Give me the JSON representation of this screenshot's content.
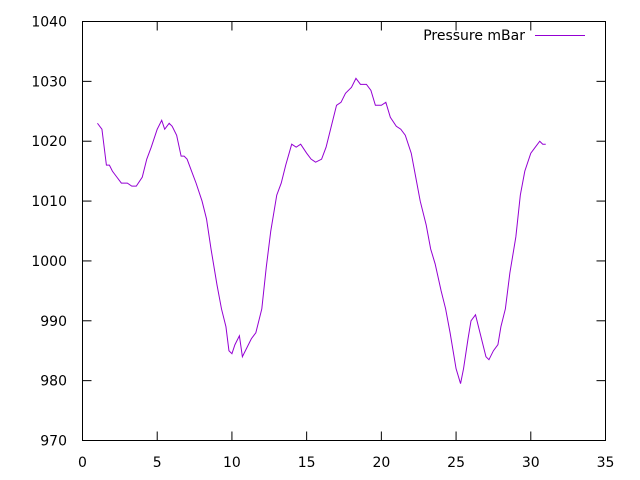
{
  "chart_data": {
    "type": "line",
    "title": "",
    "xlabel": "",
    "ylabel": "",
    "xlim": [
      0,
      35
    ],
    "ylim": [
      970,
      1040
    ],
    "x_ticks": [
      0,
      5,
      10,
      15,
      20,
      25,
      30,
      35
    ],
    "y_ticks": [
      970,
      980,
      990,
      1000,
      1010,
      1020,
      1030,
      1040
    ],
    "x_tick_labels": [
      "0",
      "5",
      "10",
      "15",
      "20",
      "25",
      "30",
      "35"
    ],
    "y_tick_labels": [
      "970",
      "980",
      "990",
      "1000",
      "1010",
      "1020",
      "1030",
      "1040"
    ],
    "grid": false,
    "legend": {
      "position": "top-right"
    },
    "series": [
      {
        "name": "Pressure mBar",
        "color": "#9400d3",
        "x": [
          1.0,
          1.3,
          1.6,
          1.8,
          2.0,
          2.3,
          2.6,
          3.0,
          3.3,
          3.6,
          4.0,
          4.3,
          4.6,
          5.0,
          5.3,
          5.5,
          5.8,
          6.0,
          6.3,
          6.6,
          6.8,
          7.0,
          7.3,
          7.6,
          8.0,
          8.3,
          8.6,
          9.0,
          9.3,
          9.6,
          9.8,
          10.0,
          10.2,
          10.5,
          10.7,
          11.0,
          11.3,
          11.6,
          12.0,
          12.3,
          12.6,
          13.0,
          13.3,
          13.6,
          14.0,
          14.3,
          14.6,
          15.0,
          15.3,
          15.6,
          16.0,
          16.3,
          16.6,
          17.0,
          17.3,
          17.6,
          18.0,
          18.3,
          18.6,
          19.0,
          19.3,
          19.6,
          20.0,
          20.3,
          20.6,
          21.0,
          21.3,
          21.6,
          22.0,
          22.3,
          22.6,
          23.0,
          23.3,
          23.6,
          24.0,
          24.3,
          24.6,
          25.0,
          25.3,
          25.5,
          25.8,
          26.0,
          26.3,
          26.6,
          27.0,
          27.2,
          27.5,
          27.8,
          28.0,
          28.3,
          28.6,
          29.0,
          29.3,
          29.6,
          30.0,
          30.3,
          30.6,
          30.8,
          31.0
        ],
        "values": [
          1023,
          1022,
          1016,
          1016,
          1015,
          1014,
          1013,
          1013,
          1012.5,
          1012.5,
          1014,
          1017,
          1019,
          1022,
          1023.5,
          1022,
          1023,
          1022.5,
          1021,
          1017.5,
          1017.5,
          1017,
          1015,
          1013,
          1010,
          1007,
          1002,
          996,
          992,
          989,
          985,
          984.5,
          986,
          987.5,
          984,
          985.5,
          987,
          988,
          992,
          999,
          1005,
          1011,
          1013,
          1016,
          1019.5,
          1019,
          1019.5,
          1018,
          1017,
          1016.5,
          1017,
          1019,
          1022,
          1026,
          1026.5,
          1028,
          1029,
          1030.5,
          1029.5,
          1029.5,
          1028.5,
          1026,
          1026,
          1026.5,
          1024,
          1022.5,
          1022,
          1021,
          1018,
          1014,
          1010,
          1006,
          1002,
          999.5,
          995,
          992,
          988,
          982,
          979.5,
          982,
          987,
          990,
          991,
          988,
          984,
          983.5,
          985,
          986,
          989,
          992,
          998,
          1004,
          1011,
          1015,
          1018,
          1019,
          1020,
          1019.5,
          1019.5
        ]
      }
    ]
  }
}
